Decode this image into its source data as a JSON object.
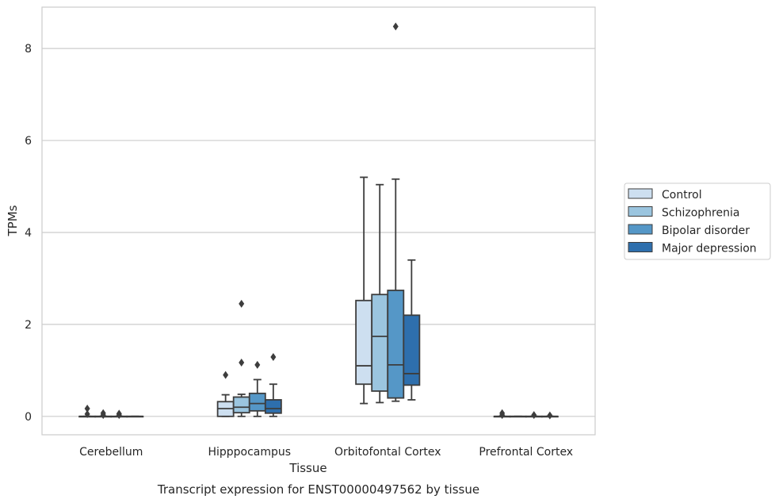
{
  "caption": "Transcript expression for ENST00000497562 by tissue",
  "chart_data": {
    "type": "box",
    "xlabel": "Tissue",
    "ylabel": "TPMs",
    "ylim": [
      -0.4,
      8.9
    ],
    "yticks": [
      0,
      2,
      4,
      6,
      8
    ],
    "grid": "horizontal",
    "legend_placement": "right",
    "categories": [
      "Cerebellum",
      "Hipppocampus",
      "Orbitofontal Cortex",
      "Prefrontal Cortex"
    ],
    "series": [
      {
        "name": "Control",
        "color": "#cddff0",
        "boxes": [
          {
            "whislo": 0,
            "q1": 0,
            "med": 0,
            "q3": 0,
            "whishi": 0,
            "fliers": [
              0.05,
              0.17
            ]
          },
          {
            "whislo": 0,
            "q1": 0,
            "med": 0.17,
            "q3": 0.32,
            "whishi": 0.47,
            "fliers": [
              0.9
            ]
          },
          {
            "whislo": 0.28,
            "q1": 0.7,
            "med": 1.1,
            "q3": 2.52,
            "whishi": 5.2,
            "fliers": []
          },
          {
            "whislo": 0,
            "q1": 0,
            "med": 0,
            "q3": 0,
            "whishi": 0,
            "fliers": [
              0.03,
              0.07
            ]
          }
        ]
      },
      {
        "name": "Schizophrenia",
        "color": "#9bc5df",
        "boxes": [
          {
            "whislo": 0,
            "q1": 0,
            "med": 0,
            "q3": 0,
            "whishi": 0,
            "fliers": [
              0.03,
              0.07
            ]
          },
          {
            "whislo": 0,
            "q1": 0.08,
            "med": 0.2,
            "q3": 0.42,
            "whishi": 0.48,
            "fliers": [
              1.17,
              2.45
            ]
          },
          {
            "whislo": 0.3,
            "q1": 0.55,
            "med": 1.74,
            "q3": 2.65,
            "whishi": 5.04,
            "fliers": []
          },
          {
            "whislo": 0,
            "q1": 0,
            "med": 0,
            "q3": 0,
            "whishi": 0,
            "fliers": []
          }
        ]
      },
      {
        "name": "Bipolar disorder",
        "color": "#5597c7",
        "boxes": [
          {
            "whislo": 0,
            "q1": 0,
            "med": 0,
            "q3": 0,
            "whishi": 0,
            "fliers": [
              0.03,
              0.06
            ]
          },
          {
            "whislo": 0,
            "q1": 0.12,
            "med": 0.28,
            "q3": 0.5,
            "whishi": 0.8,
            "fliers": [
              1.12
            ]
          },
          {
            "whislo": 0.33,
            "q1": 0.4,
            "med": 1.12,
            "q3": 2.74,
            "whishi": 5.16,
            "fliers": [
              8.48
            ]
          },
          {
            "whislo": 0,
            "q1": 0,
            "med": 0,
            "q3": 0,
            "whishi": 0,
            "fliers": [
              0.03
            ]
          }
        ]
      },
      {
        "name": "Major depression",
        "color": "#2e6fad",
        "boxes": [
          {
            "whislo": 0,
            "q1": 0,
            "med": 0,
            "q3": 0,
            "whishi": 0,
            "fliers": []
          },
          {
            "whislo": 0,
            "q1": 0.07,
            "med": 0.17,
            "q3": 0.36,
            "whishi": 0.7,
            "fliers": [
              1.29
            ]
          },
          {
            "whislo": 0.36,
            "q1": 0.68,
            "med": 0.93,
            "q3": 2.2,
            "whishi": 3.4,
            "fliers": []
          },
          {
            "whislo": 0,
            "q1": 0,
            "med": 0,
            "q3": 0,
            "whishi": 0,
            "fliers": [
              0.02
            ]
          }
        ]
      }
    ]
  }
}
